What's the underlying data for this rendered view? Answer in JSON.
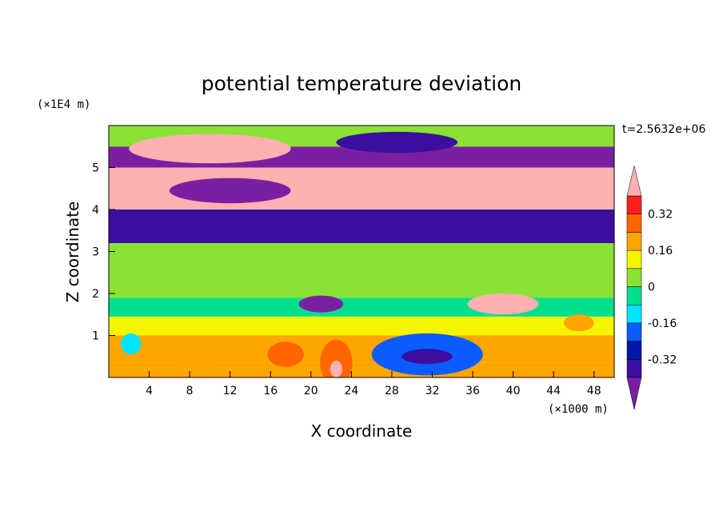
{
  "chart_data": {
    "type": "heatmap",
    "title": "potential temperature deviation",
    "xlabel": "X coordinate",
    "ylabel": "Z coordinate",
    "x_unit": "(×1000 m)",
    "y_unit": "(×1E4 m)",
    "time_label": "t=2.5632e+06",
    "xlim": [
      0,
      50
    ],
    "ylim": [
      0,
      6
    ],
    "x_ticks": [
      4,
      8,
      12,
      16,
      20,
      24,
      28,
      32,
      36,
      40,
      44,
      48
    ],
    "y_ticks": [
      1,
      2,
      3,
      4,
      5
    ],
    "colorbar": {
      "levels": [
        -0.48,
        -0.4,
        -0.32,
        -0.24,
        -0.16,
        -0.08,
        0,
        0.08,
        0.16,
        0.24,
        0.32,
        0.4,
        0.48
      ],
      "colors": [
        "#7b1fa2",
        "#3c0ea0",
        "#0018a8",
        "#0a5cff",
        "#00e5ff",
        "#00e08a",
        "#8ae234",
        "#f5f500",
        "#ffa500",
        "#ff6600",
        "#ff1f1f",
        "#ffb0b0"
      ],
      "labels": [
        "-0.32",
        "-0.16",
        "0",
        "0.16",
        "0.32"
      ],
      "label_values": [
        -0.32,
        -0.16,
        0,
        0.16,
        0.32
      ],
      "extend": "both"
    },
    "bands": [
      {
        "z": [
          0.0,
          0.35
        ],
        "value": 0.16
      },
      {
        "z": [
          0.35,
          1.0
        ],
        "value": 0.2
      },
      {
        "z": [
          1.0,
          1.45
        ],
        "value": 0.12
      },
      {
        "z": [
          1.45,
          1.9
        ],
        "value": -0.06
      },
      {
        "z": [
          1.9,
          2.6
        ],
        "value": 0.05
      },
      {
        "z": [
          2.6,
          3.2
        ],
        "value": 0.02
      },
      {
        "z": [
          3.2,
          4.0
        ],
        "value": -0.4
      },
      {
        "z": [
          4.0,
          5.0
        ],
        "value": 0.44
      },
      {
        "z": [
          5.0,
          5.5
        ],
        "value": -0.42
      },
      {
        "z": [
          5.5,
          6.0
        ],
        "value": 0.05
      }
    ],
    "features": [
      {
        "shape": "ellipse",
        "x": 31.5,
        "z": 0.55,
        "rx": 5.5,
        "rz": 0.5,
        "value": -0.2
      },
      {
        "shape": "ellipse",
        "x": 31.5,
        "z": 0.5,
        "rx": 2.5,
        "rz": 0.18,
        "value": -0.35
      },
      {
        "shape": "ellipse",
        "x": 22.5,
        "z": 0.35,
        "rx": 1.6,
        "rz": 0.55,
        "value": 0.3
      },
      {
        "shape": "ellipse",
        "x": 22.5,
        "z": 0.2,
        "rx": 0.6,
        "rz": 0.2,
        "value": 0.45
      },
      {
        "shape": "ellipse",
        "x": 17.5,
        "z": 0.55,
        "rx": 1.8,
        "rz": 0.3,
        "value": 0.26
      },
      {
        "shape": "ellipse",
        "x": 8.5,
        "z": 0.6,
        "rx": 3.0,
        "rz": 0.3,
        "value": 0.2
      },
      {
        "shape": "ellipse",
        "x": 2.2,
        "z": 0.8,
        "rx": 1.0,
        "rz": 0.25,
        "value": -0.12
      },
      {
        "shape": "ellipse",
        "x": 46.5,
        "z": 1.3,
        "rx": 1.5,
        "rz": 0.2,
        "value": 0.2
      },
      {
        "shape": "ellipse",
        "x": 21,
        "z": 1.75,
        "rx": 2.2,
        "rz": 0.2,
        "value": -0.42
      },
      {
        "shape": "ellipse",
        "x": 39,
        "z": 1.75,
        "rx": 3.5,
        "rz": 0.25,
        "value": 0.44
      },
      {
        "shape": "ellipse",
        "x": 10,
        "z": 5.45,
        "rx": 8,
        "rz": 0.35,
        "value": 0.44
      },
      {
        "shape": "ellipse",
        "x": 28.5,
        "z": 5.6,
        "rx": 6,
        "rz": 0.25,
        "value": -0.36
      },
      {
        "shape": "ellipse",
        "x": 12,
        "z": 4.45,
        "rx": 6,
        "rz": 0.3,
        "value": -0.42
      }
    ]
  }
}
